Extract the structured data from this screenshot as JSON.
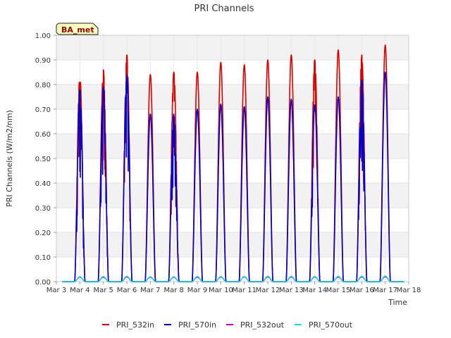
{
  "chart_data": {
    "type": "line",
    "title": "PRI Channels",
    "xlabel": "Time",
    "ylabel": "PRI Channels (W/m2/nm)",
    "badge": "BA_met",
    "ylim": [
      0,
      1.0
    ],
    "yticks": [
      "0.00",
      "0.10",
      "0.20",
      "0.30",
      "0.40",
      "0.50",
      "0.60",
      "0.70",
      "0.80",
      "0.90",
      "1.00"
    ],
    "xlim": [
      3,
      18
    ],
    "xticks": [
      "Mar 3",
      "Mar 4",
      "Mar 5",
      "Mar 6",
      "Mar 7",
      "Mar 8",
      "Mar 9",
      "Mar 10",
      "Mar 11",
      "Mar 12",
      "Mar 13",
      "Mar 14",
      "Mar 15",
      "Mar 16",
      "Mar 17",
      "Mar 18"
    ],
    "day_positions": [
      4,
      5,
      6,
      7,
      8,
      9,
      10,
      11,
      12,
      13,
      14,
      15,
      16,
      17
    ],
    "series": [
      {
        "name": "PRI_532in",
        "color": "#dd0000",
        "daily_peaks": [
          0.84,
          0.86,
          0.92,
          0.84,
          0.85,
          0.85,
          0.89,
          0.88,
          0.9,
          0.92,
          0.9,
          0.94,
          0.92,
          0.96
        ]
      },
      {
        "name": "PRI_570in",
        "color": "#0000cc",
        "daily_peaks": [
          0.78,
          0.79,
          0.84,
          0.68,
          0.68,
          0.7,
          0.72,
          0.71,
          0.75,
          0.74,
          0.72,
          0.75,
          0.82,
          0.85
        ]
      },
      {
        "name": "PRI_532out",
        "color": "#cc00cc",
        "daily_peaks": [
          0.018,
          0.018,
          0.019,
          0.018,
          0.018,
          0.018,
          0.019,
          0.019,
          0.019,
          0.019,
          0.019,
          0.019,
          0.019,
          0.02
        ]
      },
      {
        "name": "PRI_570out",
        "color": "#00e5ee",
        "daily_peaks": [
          0.02,
          0.021,
          0.022,
          0.02,
          0.02,
          0.021,
          0.021,
          0.021,
          0.022,
          0.022,
          0.021,
          0.022,
          0.022,
          0.023
        ]
      }
    ],
    "legend_position": "bottom"
  }
}
